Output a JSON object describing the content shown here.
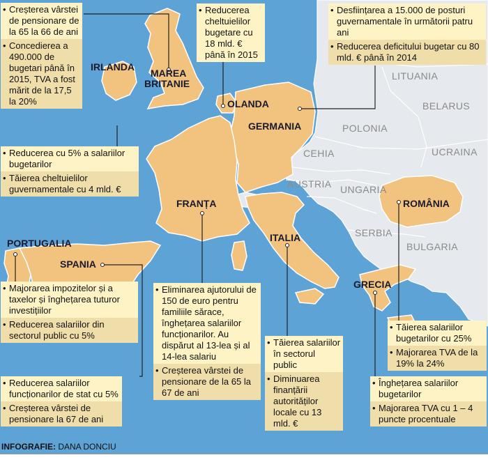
{
  "colors": {
    "sea": "#5ea3d6",
    "featured_country": "#f1c37f",
    "other_country": "#e6e9ed",
    "box_light": "#fdf3c4",
    "box_dark": "#f0deaa",
    "leader_line": "#222222"
  },
  "countries": {
    "irlanda": "IRLANDA",
    "marea_britanie_1": "MAREA",
    "marea_britanie_2": "BRITANIE",
    "olanda": "OLANDA",
    "germania": "GERMANIA",
    "franta": "FRANȚA",
    "portugalia": "PORTUGALIA",
    "spania": "SPANIA",
    "italia": "ITALIA",
    "grecia": "GRECIA",
    "romania": "ROMÂNIA"
  },
  "grey_countries": {
    "lituania": "LITUANIA",
    "belarus": "BELARUS",
    "polonia": "POLONIA",
    "cehia": "CEHIA",
    "ucraina": "UCRAINA",
    "austria": "AUSTRIA",
    "ungaria": "UNGARIA",
    "serbia": "SERBIA",
    "bulgaria": "BULGARIA"
  },
  "boxes": {
    "uk": [
      {
        "text": "Creșterea vârstei de pensionare de la 65 la 66 de ani",
        "shade": "a"
      },
      {
        "text": "Concedierea a 490.000 de bugetari până în 2015, TVA a fost mărit de la 17,5 la 20%",
        "shade": "b"
      }
    ],
    "olanda": [
      {
        "text": "Reducerea cheltuielilor bugetare cu 18 mld. € până în 2015",
        "shade": "a"
      }
    ],
    "germania": [
      {
        "text": "Desființarea a 15.000 de posturi guvernamentale în următorii patru ani",
        "shade": "a"
      },
      {
        "text": "Reducerea deficitului bugetar cu 80 mld. € până în 2014",
        "shade": "b"
      }
    ],
    "irlanda": [
      {
        "text": "Reducerea cu 5% a salariilor bugetarilor",
        "shade": "a"
      },
      {
        "text": "Tăierea cheltuielilor guvernamentale cu 4 mld. €",
        "shade": "b"
      }
    ],
    "portugalia": [
      {
        "text": "Majorarea impozitelor și a taxelor și înghețarea tuturor investițiilor",
        "shade": "a"
      },
      {
        "text": "Reducerea salariilor din sectorul public cu 5%",
        "shade": "b"
      }
    ],
    "spania": [
      {
        "text": "Reducerea salariilor funcționarilor de stat cu 5%",
        "shade": "a"
      },
      {
        "text": "Creșterea vârstei de pensionare la 67 de ani",
        "shade": "b"
      }
    ],
    "franta": [
      {
        "text": "Eliminarea ajutorului de 150 de euro pentru familiile sărace, înghețarea salariilor funcționarilor. Au dispărut al 13-lea și al 14-lea salariu",
        "shade": "a"
      },
      {
        "text": "Creșterea vârstei de pensionare de la 65 la 67 de ani",
        "shade": "b"
      }
    ],
    "italia": [
      {
        "text": "Tăierea salariilor în sectorul public",
        "shade": "a"
      },
      {
        "text": "Diminuarea finanțării autorităților locale cu 13 mld. €",
        "shade": "b"
      }
    ],
    "romania": [
      {
        "text": "Tăierea salariilor bugetarilor cu 25%",
        "shade": "a"
      },
      {
        "text": "Majorarea TVA de la 19% la 24%",
        "shade": "b"
      }
    ],
    "grecia": [
      {
        "text": "Înghețarea salariilor bugetarilor",
        "shade": "a"
      },
      {
        "text": "Majorarea TVA cu 1 – 4 puncte procentuale",
        "shade": "b"
      }
    ]
  },
  "credit": {
    "label": "INFOGRAFIE:",
    "author": "DANA DONCIU"
  }
}
